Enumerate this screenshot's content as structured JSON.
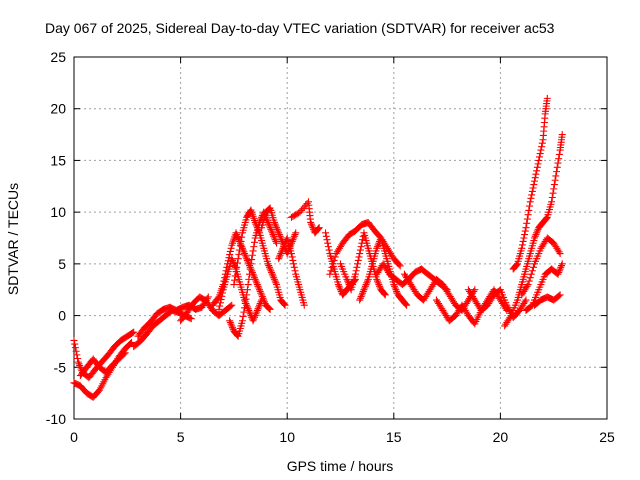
{
  "chart_data": {
    "type": "scatter",
    "title": "Day 067 of 2025, Sidereal Day-to-day VTEC variation (SDTVAR) for receiver ac53",
    "xlabel": "GPS time / hours",
    "ylabel": "SDTVAR / TECUs",
    "xlim": [
      0,
      25
    ],
    "ylim": [
      -10,
      25
    ],
    "xticks": [
      0,
      5,
      10,
      15,
      20,
      25
    ],
    "yticks": [
      -10,
      -5,
      0,
      5,
      10,
      15,
      20,
      25
    ],
    "xtick_labels": [
      "0",
      "5",
      "10",
      "15",
      "20",
      "25"
    ],
    "ytick_labels": [
      "-10",
      "-5",
      "0",
      "5",
      "10",
      "15",
      "20",
      "25"
    ],
    "grid": true,
    "marker": "+",
    "color": "#ff0000",
    "series": [
      {
        "name": "SDTVAR",
        "tracks": [
          [
            [
              0.0,
              -6.5
            ],
            [
              0.3,
              -6.8
            ],
            [
              0.6,
              -7.5
            ],
            [
              0.9,
              -7.9
            ],
            [
              1.2,
              -7.2
            ],
            [
              1.5,
              -6.0
            ],
            [
              1.8,
              -5.0
            ],
            [
              2.1,
              -4.0
            ],
            [
              2.4,
              -3.2
            ],
            [
              2.7,
              -2.6
            ]
          ],
          [
            [
              0.0,
              -2.4
            ],
            [
              0.2,
              -4.5
            ],
            [
              0.4,
              -5.5
            ],
            [
              0.7,
              -6.0
            ],
            [
              1.0,
              -5.2
            ],
            [
              1.3,
              -4.5
            ],
            [
              1.6,
              -3.8
            ],
            [
              1.9,
              -3.0
            ],
            [
              2.2,
              -2.4
            ],
            [
              2.5,
              -2.0
            ],
            [
              2.8,
              -1.6
            ]
          ],
          [
            [
              0.3,
              -5.8
            ],
            [
              0.6,
              -5.0
            ],
            [
              0.9,
              -4.2
            ],
            [
              1.2,
              -5.0
            ],
            [
              1.5,
              -5.5
            ],
            [
              1.8,
              -4.8
            ],
            [
              2.1,
              -4.2
            ],
            [
              2.4,
              -3.6
            ]
          ],
          [
            [
              2.8,
              -3.0
            ],
            [
              3.1,
              -2.5
            ],
            [
              3.4,
              -1.8
            ],
            [
              3.7,
              -1.0
            ],
            [
              4.0,
              -0.5
            ],
            [
              4.3,
              0.0
            ],
            [
              4.6,
              0.5
            ],
            [
              4.9,
              0.3
            ],
            [
              5.2,
              0.0
            ],
            [
              5.5,
              -0.3
            ]
          ],
          [
            [
              3.0,
              -2.0
            ],
            [
              3.3,
              -1.2
            ],
            [
              3.6,
              -0.6
            ],
            [
              3.9,
              0.2
            ],
            [
              4.2,
              0.6
            ],
            [
              4.5,
              0.8
            ],
            [
              4.8,
              0.5
            ],
            [
              5.1,
              0.8
            ],
            [
              5.4,
              1.0
            ],
            [
              5.7,
              0.6
            ],
            [
              6.0,
              0.8
            ],
            [
              6.3,
              1.8
            ]
          ],
          [
            [
              5.0,
              -0.5
            ],
            [
              5.3,
              0.3
            ],
            [
              5.6,
              1.2
            ],
            [
              5.9,
              1.8
            ],
            [
              6.2,
              1.4
            ],
            [
              6.5,
              0.5
            ],
            [
              6.8,
              0.0
            ],
            [
              7.1,
              0.5
            ],
            [
              7.4,
              1.0
            ]
          ],
          [
            [
              6.5,
              1.0
            ],
            [
              6.8,
              1.8
            ],
            [
              7.0,
              3.0
            ],
            [
              7.2,
              5.0
            ],
            [
              7.4,
              6.8
            ],
            [
              7.6,
              8.0
            ],
            [
              7.8,
              7.0
            ],
            [
              8.0,
              6.0
            ],
            [
              8.2,
              5.0
            ],
            [
              8.4,
              4.0
            ],
            [
              8.6,
              3.0
            ],
            [
              8.8,
              2.0
            ],
            [
              9.0,
              1.0
            ],
            [
              9.2,
              0.6
            ]
          ],
          [
            [
              6.8,
              0.6
            ],
            [
              7.0,
              2.5
            ],
            [
              7.2,
              4.0
            ],
            [
              7.4,
              5.5
            ],
            [
              7.6,
              4.5
            ],
            [
              7.8,
              3.0
            ],
            [
              8.0,
              1.5
            ],
            [
              8.2,
              0.5
            ],
            [
              8.4,
              -0.5
            ],
            [
              8.6,
              0.5
            ],
            [
              8.8,
              1.5
            ]
          ],
          [
            [
              7.3,
              -0.5
            ],
            [
              7.5,
              -1.5
            ],
            [
              7.7,
              -2.0
            ],
            [
              7.9,
              -0.5
            ],
            [
              8.1,
              2.0
            ],
            [
              8.3,
              5.0
            ],
            [
              8.5,
              7.5
            ],
            [
              8.7,
              9.0
            ],
            [
              8.9,
              10.0
            ],
            [
              9.1,
              9.0
            ],
            [
              9.3,
              8.0
            ],
            [
              9.5,
              7.0
            ]
          ],
          [
            [
              7.5,
              3.0
            ],
            [
              7.7,
              5.5
            ],
            [
              7.9,
              8.0
            ],
            [
              8.1,
              9.5
            ],
            [
              8.3,
              10.2
            ],
            [
              8.5,
              9.0
            ],
            [
              8.7,
              8.0
            ],
            [
              8.9,
              6.5
            ],
            [
              9.1,
              5.0
            ],
            [
              9.3,
              4.0
            ],
            [
              9.5,
              3.0
            ],
            [
              9.7,
              1.5
            ],
            [
              9.9,
              1.0
            ]
          ],
          [
            [
              8.8,
              8.5
            ],
            [
              9.0,
              10.0
            ],
            [
              9.2,
              10.4
            ],
            [
              9.4,
              9.0
            ],
            [
              9.6,
              8.0
            ],
            [
              9.8,
              7.0
            ],
            [
              10.0,
              6.0
            ],
            [
              10.2,
              7.0
            ],
            [
              10.4,
              8.0
            ]
          ],
          [
            [
              9.6,
              5.5
            ],
            [
              9.8,
              6.5
            ],
            [
              10.0,
              7.5
            ],
            [
              10.2,
              6.0
            ],
            [
              10.4,
              4.0
            ],
            [
              10.6,
              2.5
            ],
            [
              10.8,
              1.0
            ]
          ],
          [
            [
              10.2,
              9.5
            ],
            [
              10.6,
              10.0
            ],
            [
              11.0,
              11.0
            ],
            [
              11.1,
              9.0
            ],
            [
              11.3,
              8.0
            ],
            [
              11.5,
              8.5
            ]
          ],
          [
            [
              11.8,
              8.0
            ],
            [
              12.0,
              6.0
            ],
            [
              12.2,
              4.5
            ],
            [
              12.4,
              3.0
            ],
            [
              12.6,
              2.0
            ],
            [
              12.8,
              2.5
            ],
            [
              13.0,
              3.0
            ],
            [
              13.2,
              3.5
            ]
          ],
          [
            [
              12.0,
              4.0
            ],
            [
              12.3,
              6.0
            ],
            [
              12.6,
              7.0
            ],
            [
              12.9,
              7.8
            ],
            [
              13.2,
              8.2
            ],
            [
              13.5,
              8.8
            ],
            [
              13.8,
              9.0
            ],
            [
              14.1,
              8.2
            ],
            [
              14.4,
              7.5
            ],
            [
              14.7,
              6.5
            ],
            [
              15.0,
              5.5
            ],
            [
              15.3,
              4.8
            ]
          ],
          [
            [
              12.5,
              5.0
            ],
            [
              12.8,
              3.5
            ],
            [
              13.0,
              2.5
            ],
            [
              13.2,
              4.0
            ],
            [
              13.4,
              6.0
            ],
            [
              13.6,
              8.0
            ],
            [
              13.8,
              6.5
            ],
            [
              14.0,
              5.0
            ],
            [
              14.2,
              3.5
            ],
            [
              14.4,
              2.5
            ],
            [
              14.6,
              2.0
            ]
          ],
          [
            [
              13.4,
              1.5
            ],
            [
              13.6,
              2.5
            ],
            [
              13.8,
              3.5
            ],
            [
              14.0,
              5.0
            ],
            [
              14.2,
              6.5
            ],
            [
              14.4,
              7.5
            ],
            [
              14.6,
              6.0
            ],
            [
              14.8,
              4.5
            ],
            [
              15.0,
              3.0
            ],
            [
              15.2,
              2.0
            ],
            [
              15.4,
              1.5
            ],
            [
              15.6,
              1.0
            ]
          ],
          [
            [
              14.2,
              4.0
            ],
            [
              14.5,
              5.0
            ],
            [
              14.8,
              4.0
            ],
            [
              15.1,
              3.5
            ],
            [
              15.4,
              3.0
            ],
            [
              15.7,
              3.5
            ],
            [
              16.0,
              4.2
            ],
            [
              16.3,
              4.5
            ],
            [
              16.6,
              4.0
            ],
            [
              16.9,
              3.5
            ],
            [
              17.2,
              3.0
            ],
            [
              17.5,
              2.5
            ]
          ],
          [
            [
              15.5,
              4.0
            ],
            [
              15.8,
              3.0
            ],
            [
              16.1,
              2.0
            ],
            [
              16.4,
              1.5
            ],
            [
              16.7,
              2.5
            ],
            [
              17.0,
              3.5
            ],
            [
              17.3,
              3.0
            ],
            [
              17.6,
              2.0
            ],
            [
              17.9,
              1.0
            ],
            [
              18.2,
              0.5
            ],
            [
              18.5,
              1.5
            ],
            [
              18.8,
              2.5
            ]
          ],
          [
            [
              17.0,
              1.5
            ],
            [
              17.3,
              0.5
            ],
            [
              17.6,
              -0.5
            ],
            [
              17.9,
              0.0
            ],
            [
              18.2,
              1.0
            ],
            [
              18.5,
              0.0
            ],
            [
              18.8,
              -0.8
            ],
            [
              19.1,
              0.5
            ],
            [
              19.4,
              1.5
            ],
            [
              19.7,
              2.5
            ],
            [
              20.0,
              1.5
            ],
            [
              20.3,
              0.5
            ]
          ],
          [
            [
              18.5,
              2.5
            ],
            [
              18.8,
              1.5
            ],
            [
              19.1,
              0.5
            ],
            [
              19.4,
              1.0
            ],
            [
              19.7,
              2.0
            ],
            [
              20.0,
              2.5
            ],
            [
              20.3,
              1.0
            ],
            [
              20.6,
              -0.2
            ],
            [
              20.9,
              0.5
            ],
            [
              21.2,
              1.5
            ]
          ],
          [
            [
              20.2,
              -1.0
            ],
            [
              20.5,
              0.0
            ],
            [
              20.8,
              1.5
            ],
            [
              21.0,
              3.0
            ],
            [
              21.2,
              4.5
            ],
            [
              21.4,
              6.0
            ],
            [
              21.6,
              7.5
            ],
            [
              21.8,
              8.5
            ],
            [
              22.0,
              9.0
            ],
            [
              22.2,
              9.5
            ],
            [
              22.4,
              11.0
            ],
            [
              22.6,
              13.5
            ],
            [
              22.8,
              16.0
            ],
            [
              22.9,
              17.5
            ]
          ],
          [
            [
              20.6,
              4.5
            ],
            [
              20.8,
              5.0
            ],
            [
              21.0,
              6.5
            ],
            [
              21.2,
              8.5
            ],
            [
              21.4,
              11.0
            ],
            [
              21.6,
              13.0
            ],
            [
              21.8,
              15.0
            ],
            [
              22.0,
              17.0
            ],
            [
              22.1,
              19.5
            ],
            [
              22.2,
              21.0
            ]
          ],
          [
            [
              21.0,
              2.0
            ],
            [
              21.3,
              3.0
            ],
            [
              21.6,
              5.0
            ],
            [
              21.9,
              6.5
            ],
            [
              22.2,
              7.5
            ],
            [
              22.5,
              7.0
            ],
            [
              22.8,
              6.0
            ]
          ],
          [
            [
              21.2,
              0.5
            ],
            [
              21.5,
              1.0
            ],
            [
              21.8,
              2.5
            ],
            [
              22.1,
              4.0
            ],
            [
              22.4,
              4.5
            ],
            [
              22.7,
              4.0
            ],
            [
              22.9,
              5.0
            ]
          ],
          [
            [
              21.6,
              1.0
            ],
            [
              21.9,
              1.5
            ],
            [
              22.2,
              1.8
            ],
            [
              22.5,
              1.5
            ],
            [
              22.8,
              2.0
            ]
          ]
        ]
      }
    ]
  }
}
